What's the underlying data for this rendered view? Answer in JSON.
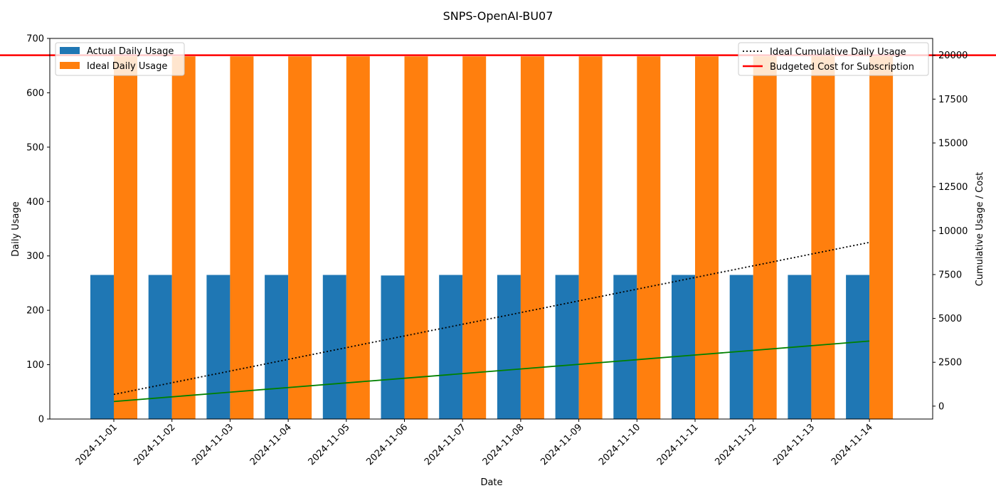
{
  "chart_data": {
    "type": "bar",
    "title": "SNPS-OpenAI-BU07",
    "xlabel": "Date",
    "ylabel": "Daily Usage",
    "y2label": "Cumulative Usage / Cost",
    "ylim": [
      0,
      700
    ],
    "y2lim": [
      -735,
      20960
    ],
    "yticks": [
      0,
      100,
      200,
      300,
      400,
      500,
      600,
      700
    ],
    "y2ticks": [
      0,
      2500,
      5000,
      7500,
      10000,
      12500,
      15000,
      17500,
      20000
    ],
    "grid": false,
    "categories": [
      "2024-11-01",
      "2024-11-02",
      "2024-11-03",
      "2024-11-04",
      "2024-11-05",
      "2024-11-06",
      "2024-11-07",
      "2024-11-08",
      "2024-11-09",
      "2024-11-10",
      "2024-11-11",
      "2024-11-12",
      "2024-11-13",
      "2024-11-14"
    ],
    "series": [
      {
        "name": "Actual Daily Usage",
        "type": "bar",
        "axis": "left",
        "color": "#1f77b4",
        "values": [
          265,
          265,
          265,
          265,
          265,
          264,
          265,
          265,
          265,
          265,
          265,
          265,
          265,
          265
        ]
      },
      {
        "name": "Ideal Daily Usage",
        "type": "bar",
        "axis": "left",
        "color": "#ff7f0e",
        "values": [
          667,
          667,
          667,
          667,
          667,
          667,
          667,
          667,
          667,
          667,
          667,
          667,
          667,
          667
        ]
      },
      {
        "name": "Ideal Cumulative Daily Usage",
        "type": "line",
        "axis": "right",
        "color": "#000000",
        "style": "dotted",
        "values": [
          667,
          1333,
          2000,
          2667,
          3333,
          4000,
          4667,
          5333,
          6000,
          6667,
          7333,
          8000,
          8667,
          9333
        ]
      },
      {
        "name": "Budgeted Cost for Subscription",
        "type": "hline",
        "axis": "right",
        "color": "#ff0000",
        "value": 20000
      },
      {
        "type": "line",
        "axis": "right",
        "color": "#008000",
        "style": "solid",
        "values": [
          265,
          530,
          795,
          1060,
          1325,
          1589,
          1854,
          2119,
          2384,
          2649,
          2914,
          3179,
          3444,
          3709
        ]
      }
    ],
    "legend_left_placement": "top-left",
    "legend_right_placement": "top-right"
  }
}
